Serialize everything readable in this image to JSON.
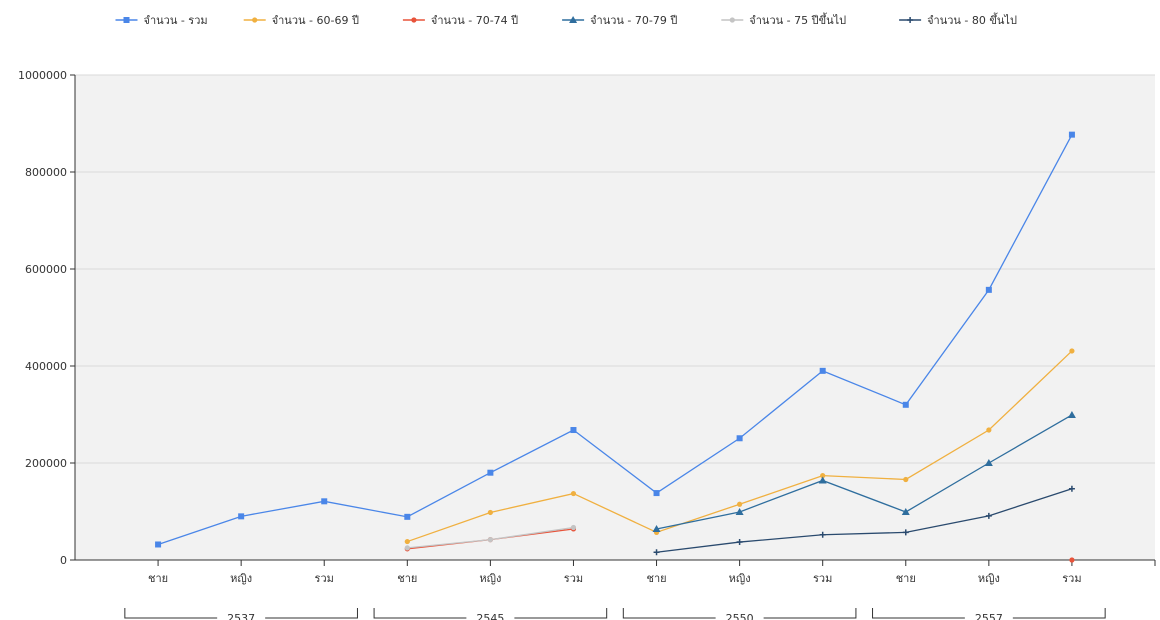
{
  "chart_data": {
    "type": "line",
    "title": "",
    "xlabel": "",
    "ylabel": "",
    "ylim": [
      0,
      1000000
    ],
    "y_ticks": [
      "0",
      "200000",
      "400000",
      "600000",
      "800000",
      "1000000"
    ],
    "grid": true,
    "legend_position": "top",
    "categories": [
      "ชาย",
      "หญิง",
      "รวม",
      "ชาย",
      "หญิง",
      "รวม",
      "ชาย",
      "หญิง",
      "รวม",
      "ชาย",
      "หญิง",
      "รวม"
    ],
    "groups": [
      {
        "label": "2537",
        "span": [
          0,
          2
        ]
      },
      {
        "label": "2545",
        "span": [
          3,
          5
        ]
      },
      {
        "label": "2550",
        "span": [
          6,
          8
        ]
      },
      {
        "label": "2557",
        "span": [
          9,
          11
        ]
      }
    ],
    "series": [
      {
        "name": "จำนวน - รวม",
        "color": "#4a86e8",
        "marker": "square",
        "values": [
          32000,
          90000,
          121000,
          89000,
          180000,
          268000,
          138000,
          251000,
          390000,
          320000,
          557000,
          877000
        ]
      },
      {
        "name": "จำนวน - 60-69 ปี",
        "color": "#f0b040",
        "marker": "circle",
        "values": [
          null,
          null,
          null,
          38000,
          98000,
          137000,
          57000,
          115000,
          174000,
          166000,
          268000,
          431000
        ]
      },
      {
        "name": "จำนวน - 70-74 ปี",
        "color": "#e8533a",
        "marker": "circle",
        "values": [
          null,
          null,
          null,
          23000,
          42000,
          64000,
          null,
          null,
          null,
          null,
          null,
          0
        ]
      },
      {
        "name": "จำนวน - 70-79 ปี",
        "color": "#2f6e9e",
        "marker": "triangle",
        "values": [
          null,
          null,
          null,
          null,
          null,
          null,
          64000,
          99000,
          164000,
          99000,
          200000,
          299000
        ]
      },
      {
        "name": "จำนวน - 75 ปีขึ้นไป",
        "color": "#c4c4c4",
        "marker": "circle",
        "values": [
          null,
          null,
          null,
          25000,
          42000,
          67000,
          null,
          null,
          null,
          null,
          null,
          null
        ]
      },
      {
        "name": "จำนวน - 80 ขึ้นไป",
        "color": "#2a4a6e",
        "marker": "plus",
        "values": [
          null,
          null,
          null,
          null,
          null,
          null,
          16000,
          37000,
          52000,
          57000,
          91000,
          147000
        ]
      }
    ]
  }
}
